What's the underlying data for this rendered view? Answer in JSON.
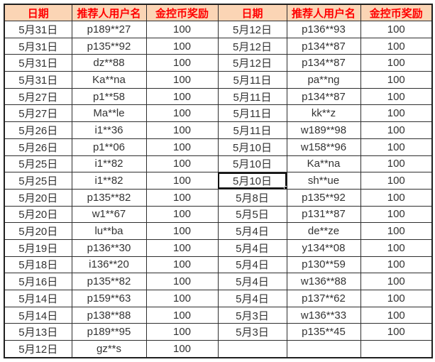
{
  "table": {
    "headers": [
      "日期",
      "推荐人用户名",
      "金控币奖励"
    ],
    "left_rows": [
      [
        "5月31日",
        "p189**27",
        "100"
      ],
      [
        "5月31日",
        "p135**92",
        "100"
      ],
      [
        "5月31日",
        "dz**88",
        "100"
      ],
      [
        "5月31日",
        "Ka**na",
        "100"
      ],
      [
        "5月27日",
        "p1**58",
        "100"
      ],
      [
        "5月27日",
        "Ma**le",
        "100"
      ],
      [
        "5月26日",
        "i1**36",
        "100"
      ],
      [
        "5月26日",
        "p1**06",
        "100"
      ],
      [
        "5月25日",
        "i1**82",
        "100"
      ],
      [
        "5月25日",
        "i1**82",
        "100"
      ],
      [
        "5月20日",
        "p135**82",
        "100"
      ],
      [
        "5月20日",
        "w1**67",
        "100"
      ],
      [
        "5月20日",
        "lu**ba",
        "100"
      ],
      [
        "5月19日",
        "p136**30",
        "100"
      ],
      [
        "5月18日",
        "i136**20",
        "100"
      ],
      [
        "5月16日",
        "p135**82",
        "100"
      ],
      [
        "5月14日",
        "p159**63",
        "100"
      ],
      [
        "5月14日",
        "p138**88",
        "100"
      ],
      [
        "5月13日",
        "p189**95",
        "100"
      ],
      [
        "5月12日",
        "gz**s",
        "100"
      ]
    ],
    "right_rows": [
      [
        "5月12日",
        "p136**93",
        "100"
      ],
      [
        "5月12日",
        "p134**87",
        "100"
      ],
      [
        "5月12日",
        "p134**87",
        "100"
      ],
      [
        "5月11日",
        "pa**ng",
        "100"
      ],
      [
        "5月11日",
        "p134**87",
        "100"
      ],
      [
        "5月11日",
        "kk**z",
        "100"
      ],
      [
        "5月11日",
        "w189**98",
        "100"
      ],
      [
        "5月10日",
        "w158**96",
        "100"
      ],
      [
        "5月10日",
        "Ka**na",
        "100"
      ],
      [
        "5月10日",
        "sh**ue",
        "100"
      ],
      [
        "5月8日",
        "p135**92",
        "100"
      ],
      [
        "5月5日",
        "p131**87",
        "100"
      ],
      [
        "5月4日",
        "de**ze",
        "100"
      ],
      [
        "5月4日",
        "y134**08",
        "100"
      ],
      [
        "5月4日",
        "p130**59",
        "100"
      ],
      [
        "5月4日",
        "w136**88",
        "100"
      ],
      [
        "5月4日",
        "p137**62",
        "100"
      ],
      [
        "5月3日",
        "w136**33",
        "100"
      ],
      [
        "5月3日",
        "p135**45",
        "100"
      ],
      [
        "",
        "",
        ""
      ]
    ],
    "selection": {
      "side": "right",
      "row_index": 9,
      "col_index": 0
    }
  },
  "colors": {
    "header_bg": "#FBD5B5",
    "header_text": "#FF0000",
    "border_inner": "#2e2e2e",
    "border_outer": "#1f1f1f"
  }
}
